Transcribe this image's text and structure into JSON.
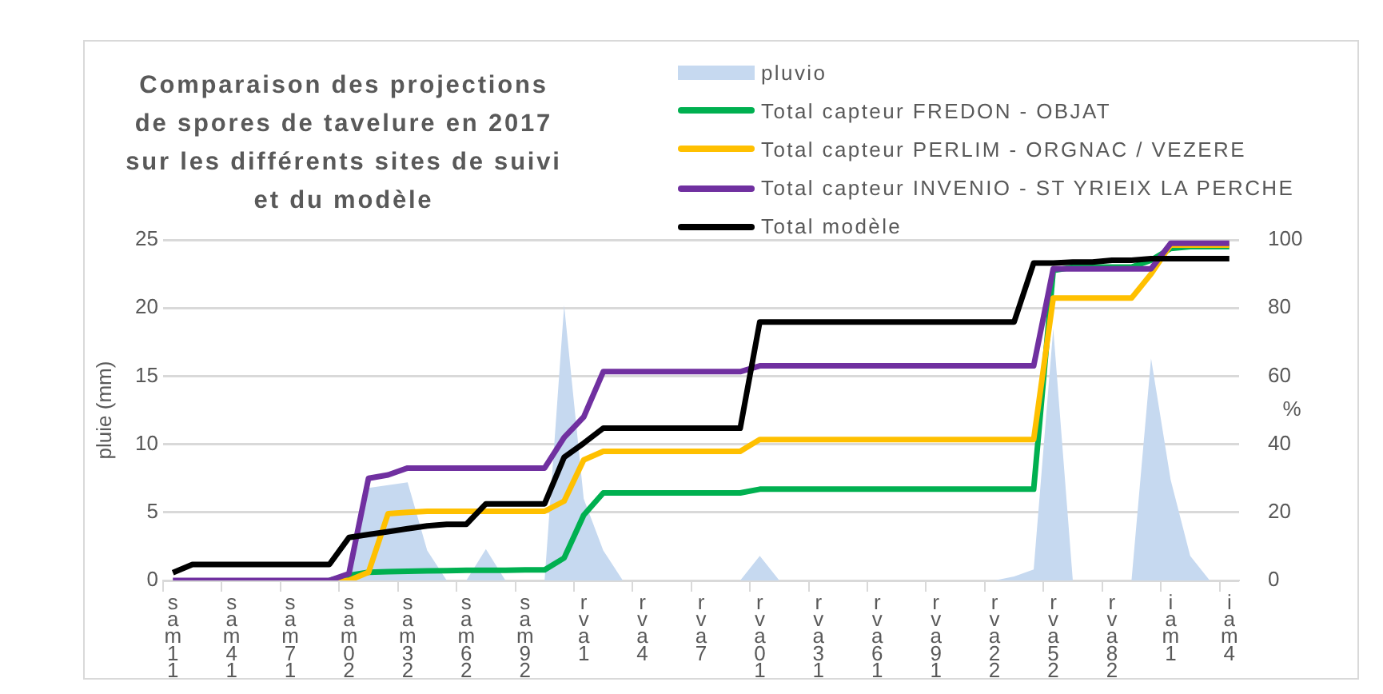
{
  "chart_data": {
    "type": "line",
    "title": "Comparaison des projections\nde spores de tavelure en 2017\nsur les différents sites de suivi\net du modèle",
    "ylabel": "pluie (mm)",
    "y2label": "%",
    "categories": [
      "sam11",
      null,
      null,
      "sam41",
      null,
      null,
      "sam71",
      null,
      null,
      "sam02",
      null,
      null,
      "sam32",
      null,
      null,
      "sam62",
      null,
      null,
      "sam92",
      null,
      null,
      "rva1",
      null,
      null,
      "rva4",
      null,
      null,
      "rva7",
      null,
      null,
      "rva01",
      null,
      null,
      "rva31",
      null,
      null,
      "rva61",
      null,
      null,
      "rva91",
      null,
      null,
      "rva22",
      null,
      null,
      "rva52",
      null,
      null,
      "rva82",
      null,
      null,
      "iam1",
      null,
      null,
      "iam4"
    ],
    "ylim": [
      0,
      25
    ],
    "yticks": [
      0,
      5,
      10,
      15,
      20,
      25
    ],
    "y2lim": [
      0,
      100
    ],
    "y2ticks": [
      0,
      20,
      40,
      60,
      80,
      100
    ],
    "grid": "y",
    "legend": "top",
    "marker": "none",
    "series": [
      {
        "name": "pluvio",
        "type": "area",
        "color": "#c6d9f0",
        "values": [
          0,
          0,
          0,
          0,
          0,
          0,
          0,
          0,
          0,
          0,
          6.8,
          7,
          7.2,
          2.2,
          0,
          0,
          2.3,
          0,
          0,
          0,
          20.2,
          6,
          2.2,
          0,
          0,
          0,
          0,
          0,
          0,
          0,
          1.8,
          0,
          0,
          0,
          0,
          0,
          0,
          0,
          0,
          0,
          0,
          0,
          0,
          0.3,
          0.8,
          18.5,
          0,
          0,
          0,
          0,
          16.3,
          7.4,
          1.8,
          0,
          0
        ]
      },
      {
        "name": "Total capteur FREDON - OBJAT",
        "axis": "y2",
        "color": "#00b050",
        "values": [
          null,
          null,
          null,
          null,
          null,
          null,
          null,
          null,
          0,
          1.5,
          2.4,
          2.6,
          2.7,
          2.8,
          2.9,
          3,
          3,
          3,
          3.1,
          3.1,
          6.6,
          19.2,
          25.7,
          25.7,
          25.7,
          25.7,
          25.7,
          25.7,
          25.7,
          25.7,
          26.8,
          26.8,
          26.8,
          26.8,
          26.8,
          26.8,
          26.8,
          26.8,
          26.8,
          26.8,
          26.8,
          26.8,
          26.8,
          26.8,
          26.8,
          91,
          92,
          92,
          92,
          92,
          94,
          97.5,
          98,
          98,
          98
        ]
      },
      {
        "name": "Total capteur PERLIM - ORGNAC / VEZERE",
        "axis": "y2",
        "color": "#ffc000",
        "values": [
          null,
          null,
          null,
          null,
          null,
          null,
          null,
          null,
          0,
          0,
          2.4,
          19.6,
          20,
          20.3,
          20.3,
          20.3,
          20.3,
          20.3,
          20.3,
          20.3,
          23.3,
          35.4,
          37.9,
          37.9,
          37.9,
          37.9,
          37.9,
          37.9,
          37.9,
          37.9,
          41.4,
          41.4,
          41.4,
          41.4,
          41.4,
          41.4,
          41.4,
          41.4,
          41.4,
          41.4,
          41.4,
          41.4,
          41.4,
          41.4,
          41.4,
          82.9,
          82.9,
          82.9,
          82.9,
          82.9,
          90,
          98.5,
          98.5,
          98.5,
          98.5
        ]
      },
      {
        "name": "Total capteur INVENIO - ST YRIEIX LA PERCHE",
        "axis": "y2",
        "color": "#7030a0",
        "values": [
          0,
          0,
          0,
          0,
          0,
          0,
          0,
          0,
          0,
          2,
          30,
          31,
          33,
          33,
          33,
          33,
          33,
          33,
          33,
          33,
          42,
          48,
          61.3,
          61.3,
          61.3,
          61.3,
          61.3,
          61.3,
          61.3,
          61.3,
          63,
          63,
          63,
          63,
          63,
          63,
          63,
          63,
          63,
          63,
          63,
          63,
          63,
          63,
          63,
          91.5,
          91.5,
          91.5,
          91.5,
          91.5,
          91.5,
          99,
          99,
          99,
          99
        ]
      },
      {
        "name": "Total modèle",
        "axis": "y2",
        "color": "#000000",
        "values": [
          2.3,
          4.7,
          4.7,
          4.7,
          4.7,
          4.7,
          4.7,
          4.7,
          4.7,
          12.6,
          13.5,
          14.3,
          15.2,
          16,
          16.5,
          16.5,
          22.5,
          22.5,
          22.5,
          22.5,
          36.2,
          40.3,
          44.7,
          44.7,
          44.7,
          44.7,
          44.7,
          44.7,
          44.7,
          44.7,
          75.9,
          75.9,
          75.9,
          75.9,
          75.9,
          75.9,
          75.9,
          75.9,
          75.9,
          75.9,
          75.9,
          75.9,
          75.9,
          75.9,
          93.2,
          93.2,
          93.5,
          93.5,
          94,
          94,
          94.5,
          94.5,
          94.5,
          94.5,
          94.5
        ]
      }
    ]
  }
}
